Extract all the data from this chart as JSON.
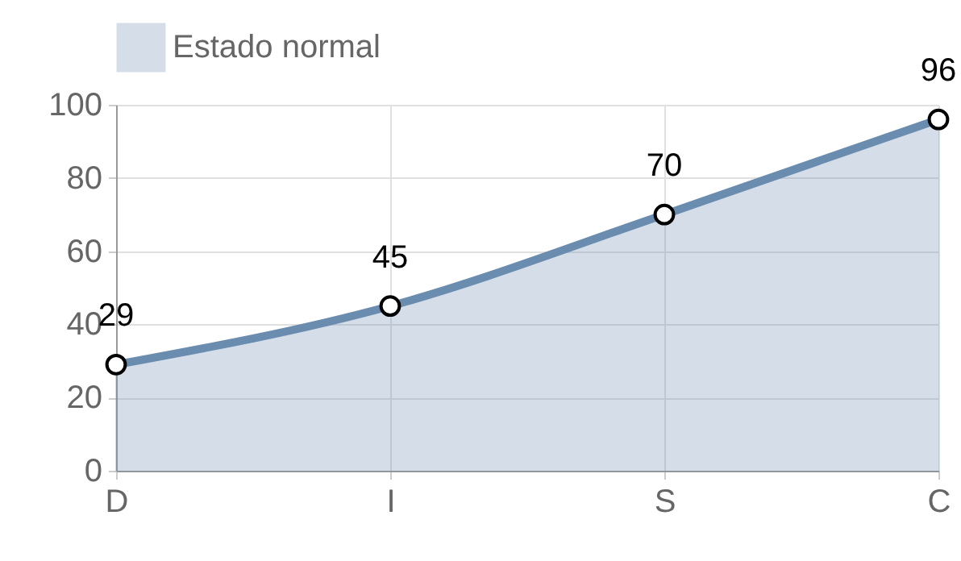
{
  "chart_data": {
    "type": "area",
    "categories": [
      "D",
      "I",
      "S",
      "C"
    ],
    "series": [
      {
        "name": "Estado normal",
        "color": "#6a8caf",
        "values": [
          29,
          45,
          70,
          96
        ]
      }
    ],
    "ylim": [
      0,
      100
    ],
    "yticks": [
      0,
      20,
      40,
      60,
      80,
      100
    ],
    "grid": true,
    "legend": "top",
    "marker": "circle",
    "data_labels": true
  }
}
